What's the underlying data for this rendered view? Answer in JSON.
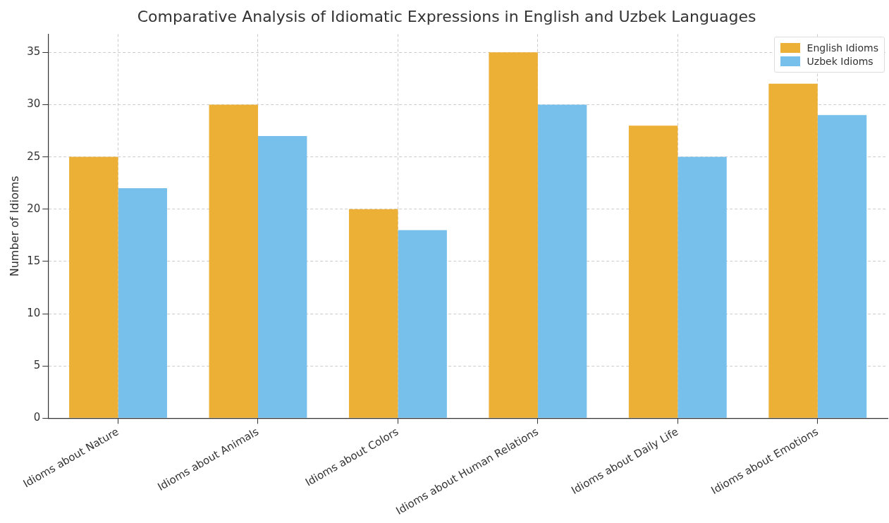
{
  "chart_data": {
    "type": "bar",
    "title": "Comparative Analysis of Idiomatic Expressions in English and Uzbek Languages",
    "ylabel": "Number of Idioms",
    "categories": [
      "Idioms about Nature",
      "Idioms about Animals",
      "Idioms about Colors",
      "Idioms about Human Relations",
      "Idioms about Daily Life",
      "Idioms about Emotions"
    ],
    "series": [
      {
        "name": "English Idioms",
        "color": "#ebb035",
        "values": [
          25,
          30,
          20,
          35,
          28,
          32
        ]
      },
      {
        "name": "Uzbek Idioms",
        "color": "#77c0eb",
        "values": [
          22,
          27,
          18,
          30,
          25,
          29
        ]
      }
    ],
    "ylim": [
      0,
      36.75
    ],
    "yticks": [
      0,
      5,
      10,
      15,
      20,
      25,
      30,
      35
    ],
    "grid": true,
    "legend": "top right"
  }
}
